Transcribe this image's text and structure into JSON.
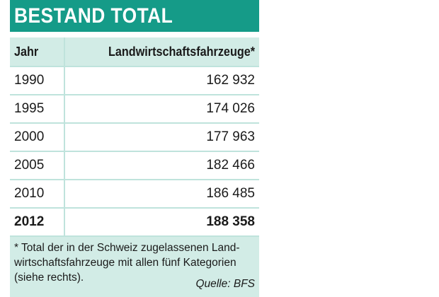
{
  "title": "BESTAND TOTAL",
  "table": {
    "headers": {
      "year": "Jahr",
      "value": "Landwirtschaftsfahrzeuge*"
    },
    "rows": [
      {
        "year": "1990",
        "value": "162 932"
      },
      {
        "year": "1995",
        "value": "174 026"
      },
      {
        "year": "2000",
        "value": "177 963"
      },
      {
        "year": "2005",
        "value": "182 466"
      },
      {
        "year": "2010",
        "value": "186 485"
      },
      {
        "year": "2012",
        "value": "188 358"
      }
    ]
  },
  "footnote": {
    "text": "* Total der in der Schweiz zugelassenen Land-wirtschaftsfahrzeuge mit allen fünf Kategorien (siehe rechts).",
    "source": "Quelle: BFS"
  },
  "colors": {
    "accent": "#159b88",
    "light_fill": "#d2ece6",
    "rule": "#bfe3dc"
  }
}
